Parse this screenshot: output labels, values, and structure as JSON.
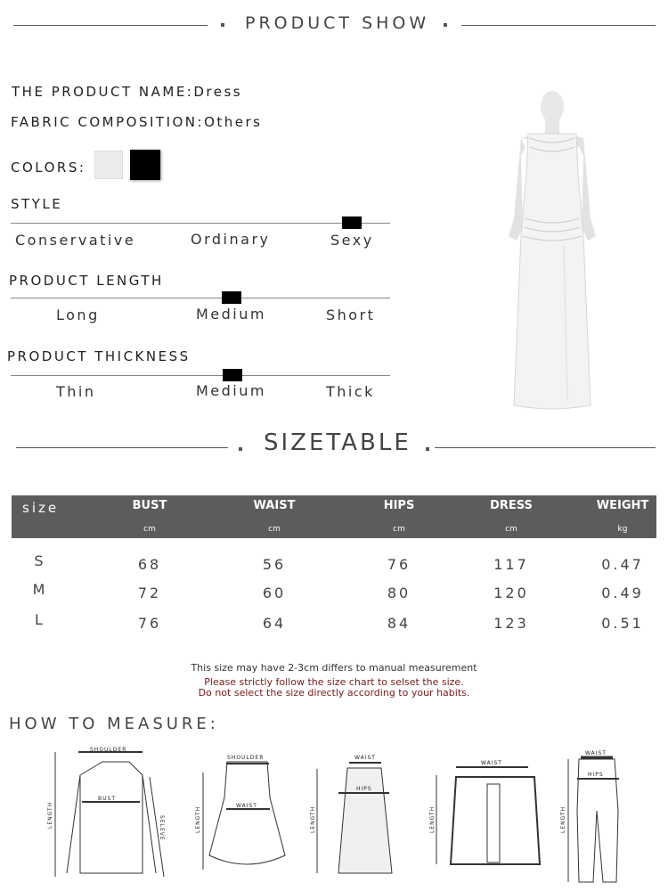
{
  "header": {
    "title": "PRODUCT SHOW"
  },
  "product": {
    "name_label": "THE PRODUCT NAME:",
    "name": "Dress",
    "fabric_label": "FABRIC COMPOSITION:",
    "fabric": "Others",
    "colors_label": "COLORS:",
    "colors": [
      "#ececec",
      "#000000"
    ]
  },
  "scales": [
    {
      "title": "STYLE",
      "options": [
        "Conservative",
        "Ordinary",
        "Sexy"
      ],
      "selected": "Sexy"
    },
    {
      "title": "PRODUCT LENGTH",
      "options": [
        "Long",
        "Medium",
        "Short"
      ],
      "selected": "Medium"
    },
    {
      "title": "PRODUCT THICKNESS",
      "options": [
        "Thin",
        "Medium",
        "Thick"
      ],
      "selected": "Medium"
    }
  ],
  "sizetable": {
    "title": "SIZETABLE",
    "size_header": "size",
    "columns": [
      {
        "name": "BUST",
        "unit": "cm"
      },
      {
        "name": "WAIST",
        "unit": "cm"
      },
      {
        "name": "HIPS",
        "unit": "cm"
      },
      {
        "name": "DRESS",
        "unit": "cm"
      },
      {
        "name": "WEIGHT",
        "unit": "kg"
      }
    ],
    "rows": [
      {
        "size": "S",
        "values": [
          "68",
          "56",
          "76",
          "117",
          "0.47"
        ]
      },
      {
        "size": "M",
        "values": [
          "72",
          "60",
          "80",
          "120",
          "0.49"
        ]
      },
      {
        "size": "L",
        "values": [
          "76",
          "64",
          "84",
          "123",
          "0.51"
        ]
      }
    ],
    "note": "This size may have 2-3cm differs to manual measurement",
    "warning1": "Please strictly follow the size chart to selset the size.",
    "warning2": "Do not select the size directly according to your habits.",
    "warning_color": "#7a1a1a"
  },
  "measure": {
    "title": "HOW TO MEASURE:",
    "labels": {
      "shoulder": "SHOULDER",
      "bust": "BUST",
      "length": "LENGTH",
      "sleeve": "SELEVE",
      "waist": "WAIST",
      "hips": "HIPS"
    }
  }
}
